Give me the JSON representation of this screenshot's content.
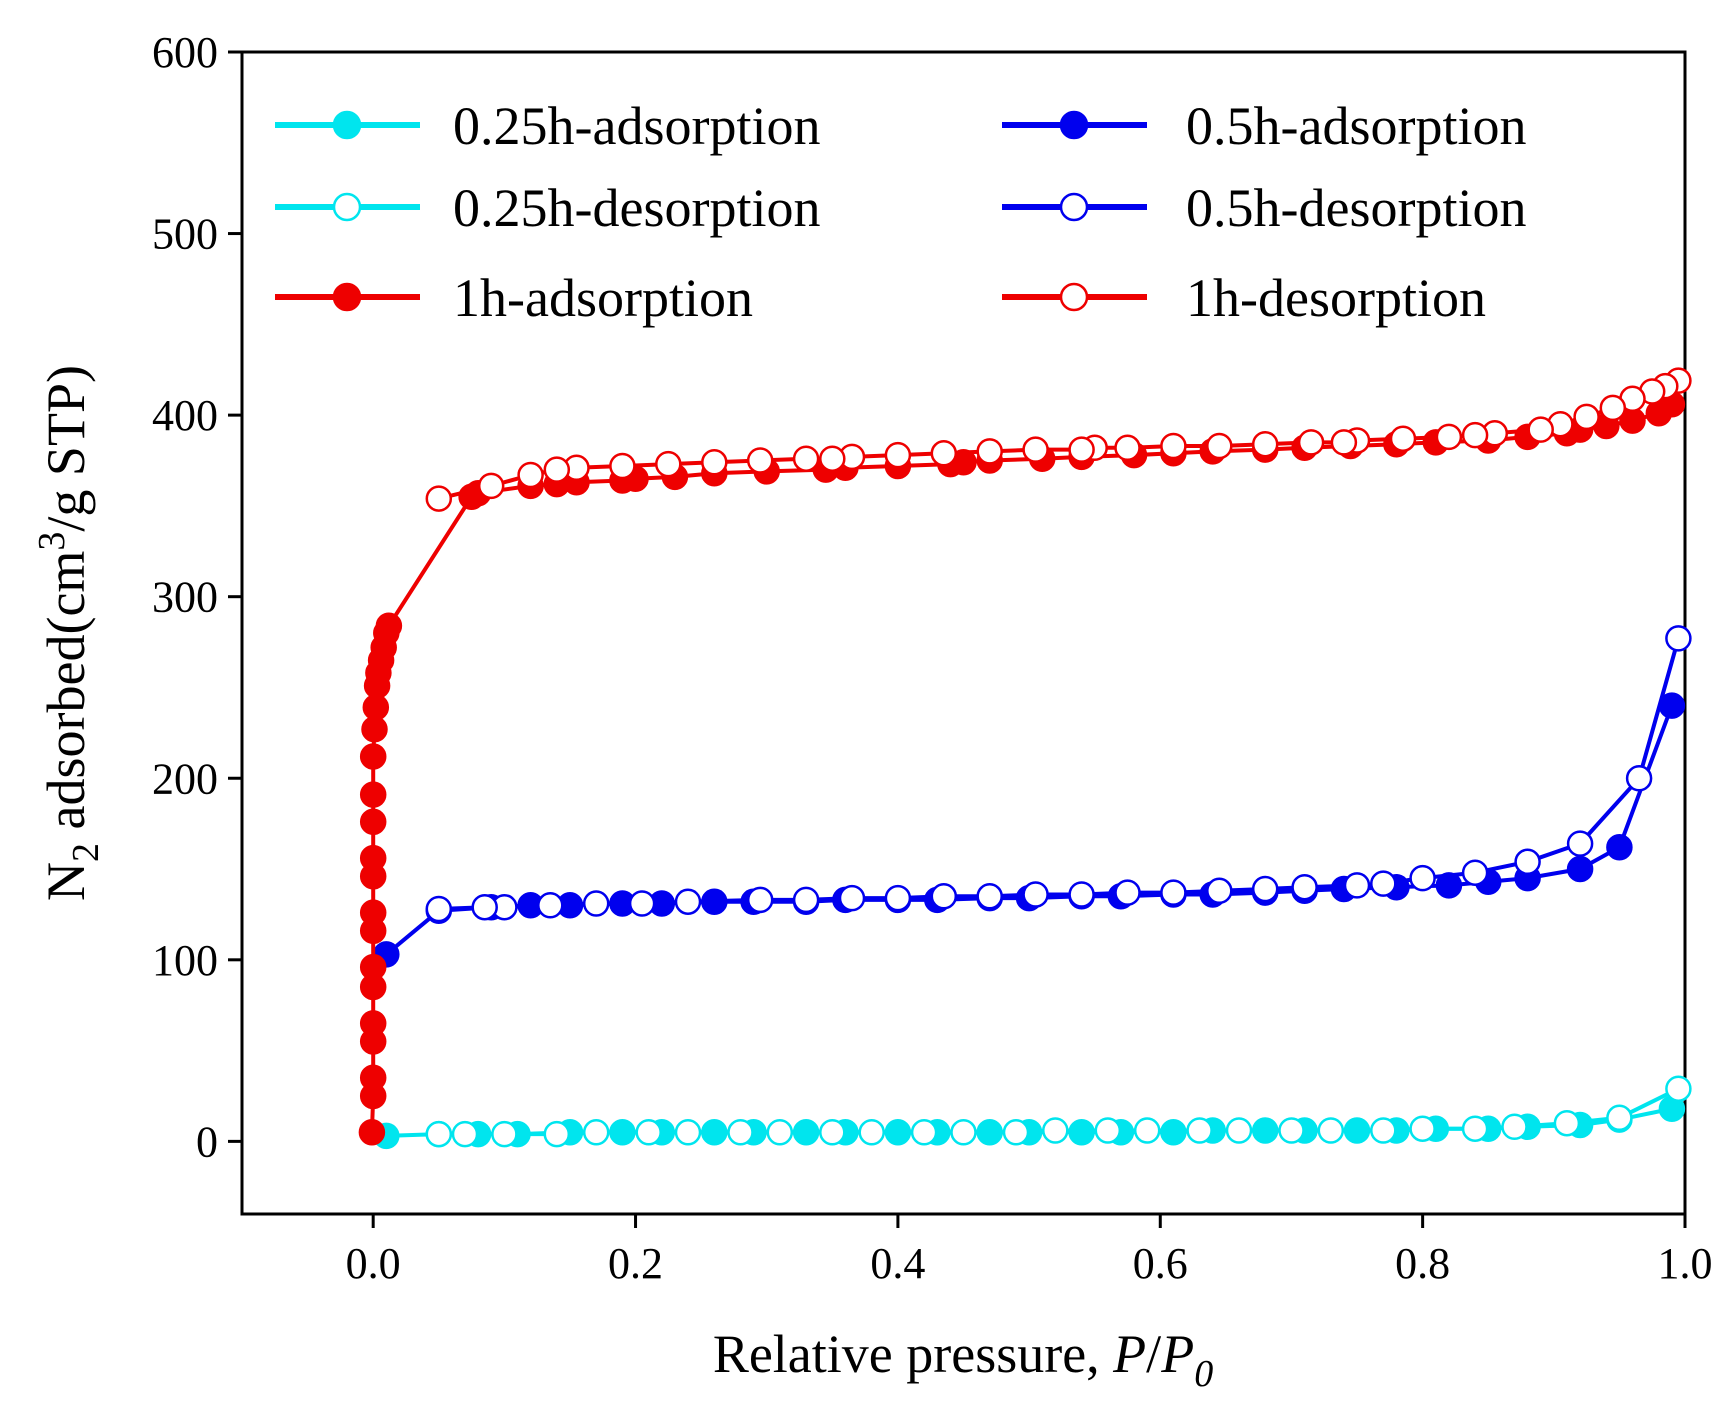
{
  "chart_data": {
    "type": "scatter",
    "title": "",
    "xlabel": {
      "main": "Relative pressure, ",
      "italic1": "P",
      "slash": "/",
      "italic2": "P",
      "sub": "0"
    },
    "ylabel": {
      "prefix": "N",
      "sub": "2",
      "mid": " adsorbed(cm",
      "sup": "3",
      "suffix": "/g STP)"
    },
    "xlim": [
      -0.1,
      1.0
    ],
    "ylim": [
      -40,
      600
    ],
    "xticks": [
      0.0,
      0.2,
      0.4,
      0.6,
      0.8,
      1.0
    ],
    "xtick_labels": [
      "0.0",
      "0.2",
      "0.4",
      "0.6",
      "0.8",
      "1.0"
    ],
    "yticks": [
      0,
      100,
      200,
      300,
      400,
      500,
      600
    ],
    "ytick_labels": [
      "0",
      "100",
      "200",
      "300",
      "400",
      "500",
      "600"
    ],
    "grid": false,
    "legend_position": "top, two columns",
    "series": [
      {
        "name": "0.25h-adsorption",
        "color": "#00e5ee",
        "marker": "filled",
        "x": [
          0.01,
          0.05,
          0.08,
          0.11,
          0.15,
          0.19,
          0.22,
          0.26,
          0.29,
          0.33,
          0.36,
          0.4,
          0.43,
          0.47,
          0.5,
          0.54,
          0.57,
          0.61,
          0.64,
          0.68,
          0.71,
          0.75,
          0.78,
          0.81,
          0.85,
          0.88,
          0.92,
          0.95,
          0.99
        ],
        "y": [
          3,
          4,
          4,
          4,
          5,
          5,
          5,
          5,
          5,
          5,
          5,
          5,
          5,
          5,
          5,
          5,
          5,
          5,
          6,
          6,
          6,
          6,
          6,
          7,
          7,
          8,
          9,
          12,
          18
        ]
      },
      {
        "name": "0.25h-desorption",
        "color": "#00e5ee",
        "marker": "open",
        "x": [
          0.995,
          0.95,
          0.91,
          0.87,
          0.84,
          0.8,
          0.77,
          0.73,
          0.7,
          0.66,
          0.63,
          0.59,
          0.56,
          0.52,
          0.49,
          0.45,
          0.42,
          0.38,
          0.35,
          0.31,
          0.28,
          0.24,
          0.21,
          0.17,
          0.14,
          0.1,
          0.07,
          0.05
        ],
        "y": [
          29,
          13,
          10,
          8,
          7,
          7,
          6,
          6,
          6,
          6,
          6,
          6,
          6,
          6,
          5,
          5,
          5,
          5,
          5,
          5,
          5,
          5,
          5,
          5,
          4,
          4,
          4,
          4
        ]
      },
      {
        "name": "0.5h-adsorption",
        "color": "#0000ee",
        "marker": "filled",
        "x": [
          0.01,
          0.05,
          0.09,
          0.12,
          0.15,
          0.19,
          0.22,
          0.26,
          0.29,
          0.33,
          0.36,
          0.4,
          0.43,
          0.47,
          0.5,
          0.54,
          0.57,
          0.61,
          0.64,
          0.68,
          0.71,
          0.74,
          0.78,
          0.82,
          0.85,
          0.88,
          0.92,
          0.95,
          0.99
        ],
        "y": [
          103,
          127,
          129,
          130,
          130,
          131,
          131,
          132,
          132,
          132,
          133,
          133,
          133,
          134,
          134,
          135,
          135,
          136,
          136,
          137,
          138,
          139,
          140,
          141,
          143,
          145,
          150,
          162,
          240
        ]
      },
      {
        "name": "0.5h-desorption",
        "color": "#0000ee",
        "marker": "open",
        "x": [
          0.995,
          0.965,
          0.92,
          0.88,
          0.84,
          0.8,
          0.77,
          0.75,
          0.71,
          0.68,
          0.645,
          0.61,
          0.575,
          0.54,
          0.505,
          0.47,
          0.435,
          0.4,
          0.365,
          0.33,
          0.295,
          0.24,
          0.205,
          0.17,
          0.135,
          0.1,
          0.085,
          0.05
        ],
        "y": [
          277,
          200,
          164,
          154,
          148,
          145,
          142,
          141,
          140,
          139,
          138,
          137,
          137,
          136,
          136,
          135,
          135,
          134,
          134,
          133,
          133,
          132,
          131,
          131,
          130,
          129,
          129,
          128
        ]
      },
      {
        "name": "1h-adsorption",
        "color": "#ee0000",
        "marker": "filled",
        "x": [
          -0.001,
          0.0,
          0.0,
          0.0,
          0.0,
          0.0,
          0.0,
          0.0,
          0.0,
          0.0,
          0.0,
          0.0,
          0.0,
          0.0,
          0.001,
          0.002,
          0.003,
          0.004,
          0.006,
          0.008,
          0.01,
          0.012,
          0.075,
          0.08,
          0.12,
          0.14,
          0.155,
          0.19,
          0.2,
          0.23,
          0.26,
          0.3,
          0.345,
          0.36,
          0.4,
          0.44,
          0.45,
          0.47,
          0.51,
          0.54,
          0.58,
          0.61,
          0.64,
          0.68,
          0.71,
          0.745,
          0.78,
          0.81,
          0.85,
          0.88,
          0.91,
          0.92,
          0.94,
          0.96,
          0.98,
          0.99
        ],
        "y": [
          5,
          25,
          35,
          55,
          65,
          85,
          96,
          116,
          126,
          146,
          156,
          176,
          191,
          212,
          227,
          239,
          251,
          258,
          265,
          272,
          280,
          284,
          355,
          357,
          361,
          362,
          363,
          364,
          365,
          366,
          368,
          369,
          370,
          371,
          372,
          373,
          374,
          375,
          376,
          377,
          378,
          379,
          380,
          381,
          382,
          383,
          384,
          385,
          386,
          388,
          390,
          392,
          394,
          397,
          401,
          406
        ]
      },
      {
        "name": "1h-desorption",
        "color": "#ee0000",
        "marker": "open",
        "x": [
          0.995,
          0.985,
          0.975,
          0.96,
          0.945,
          0.925,
          0.905,
          0.89,
          0.855,
          0.84,
          0.82,
          0.785,
          0.75,
          0.74,
          0.715,
          0.68,
          0.645,
          0.61,
          0.575,
          0.55,
          0.54,
          0.505,
          0.47,
          0.435,
          0.4,
          0.365,
          0.35,
          0.33,
          0.295,
          0.26,
          0.225,
          0.19,
          0.155,
          0.14,
          0.12,
          0.09,
          0.05
        ],
        "y": [
          419,
          416,
          413,
          409,
          404,
          399,
          395,
          392,
          390,
          389,
          388,
          387,
          386,
          385,
          385,
          384,
          383,
          383,
          382,
          382,
          381,
          381,
          380,
          379,
          378,
          377,
          376,
          376,
          375,
          374,
          373,
          372,
          371,
          370,
          367,
          361,
          354
        ]
      }
    ]
  }
}
